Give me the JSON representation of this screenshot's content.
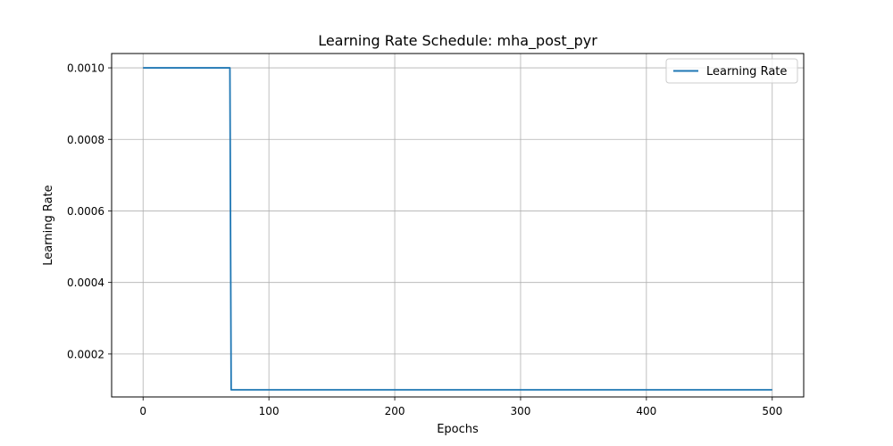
{
  "chart_data": {
    "type": "line",
    "title": "Learning Rate Schedule: mha_post_pyr",
    "xlabel": "Epochs",
    "ylabel": "Learning Rate",
    "xlim": [
      -25,
      525
    ],
    "ylim": [
      8e-05,
      0.00104
    ],
    "x_ticks": [
      0,
      100,
      200,
      300,
      400,
      500
    ],
    "x_tick_labels": [
      "0",
      "100",
      "200",
      "300",
      "400",
      "500"
    ],
    "y_ticks": [
      0.0002,
      0.0004,
      0.0006,
      0.0008,
      0.001
    ],
    "y_tick_labels": [
      "0.0002",
      "0.0004",
      "0.0006",
      "0.0008",
      "0.0010"
    ],
    "grid": true,
    "legend_position": "top-right",
    "series": [
      {
        "name": "Learning Rate",
        "color": "#1f77b4",
        "x": [
          0,
          69,
          70,
          500
        ],
        "y": [
          0.001,
          0.001,
          0.0001,
          0.0001
        ]
      }
    ]
  }
}
